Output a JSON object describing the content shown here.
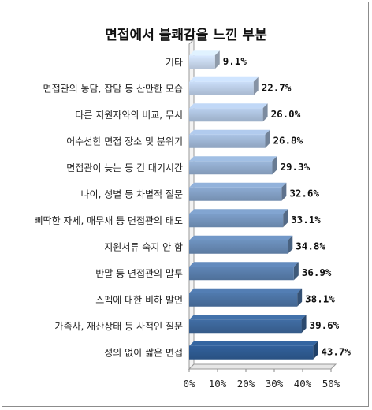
{
  "chart_data": {
    "type": "bar",
    "orientation": "horizontal",
    "title": "면접에서 불쾌감을 느낀 부분",
    "categories": [
      "기타",
      "면접관의 농담, 잡담 등 산만한 모습",
      "다른 지원자와의 비교, 무시",
      "어수선한 면접 장소 및 분위기",
      "면접관이 늦는 등 긴 대기시간",
      "나이, 성별 등 차별적 질문",
      "삐딱한 자세, 매무새 등 면접관의 태도",
      "지원서류 숙지 안 함",
      "반말 등 면접관의 말투",
      "스펙에 대한 비하 발언",
      "가족사, 재산상태 등 사적인 질문",
      "성의 없이 짧은 면접"
    ],
    "values": [
      9.1,
      22.7,
      26.0,
      26.8,
      29.3,
      32.6,
      33.1,
      34.8,
      36.9,
      38.1,
      39.6,
      43.7
    ],
    "value_labels": [
      "9.1%",
      "22.7%",
      "26.0%",
      "26.8%",
      "29.3%",
      "32.6%",
      "33.1%",
      "34.8%",
      "36.9%",
      "38.1%",
      "39.6%",
      "43.7%"
    ],
    "xlim": [
      0,
      50
    ],
    "x_ticks": [
      "0%",
      "10%",
      "20%",
      "30%",
      "40%",
      "50%"
    ],
    "grid": false,
    "legend": "none",
    "colors": {
      "light": "#c8d8ee",
      "dark": "#2e5a90"
    }
  }
}
